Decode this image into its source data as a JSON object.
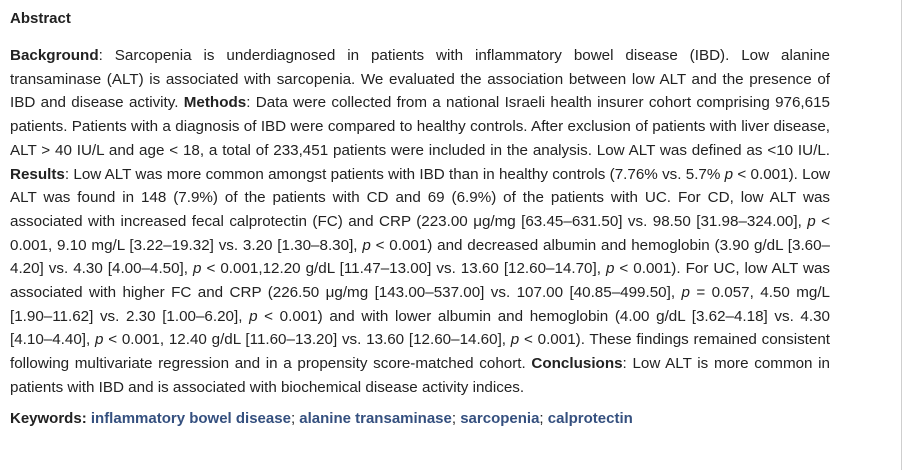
{
  "abstract": {
    "heading": "Abstract",
    "background_label": "Background",
    "background_text": ": Sarcopenia is underdiagnosed in patients with inflammatory bowel disease (IBD). Low alanine transaminase (ALT) is associated with sarcopenia. We evaluated the association between low ALT and the presence of IBD and disease activity. ",
    "methods_label": "Methods",
    "methods_text": ": Data were collected from a national Israeli health insurer cohort comprising 976,615 patients. Patients with a diagnosis of IBD were compared to healthy controls. After exclusion of patients with liver disease, ALT > 40 IU/L and age < 18, a total of 233,451 patients were included in the analysis. Low ALT was defined as <10 IU/L. ",
    "results_label": "Results",
    "results_p1": ": Low ALT was more common amongst patients with IBD than in healthy controls (7.76% vs. 5.7% ",
    "results_p2": " < 0.001). Low ALT was found in 148 (7.9%) of the patients with CD and 69 (6.9%) of the patients with UC. For CD, low ALT was associated with increased fecal calprotectin (FC) and CRP (223.00 μg/mg [63.45–631.50] vs. 98.50 [31.98–324.00], ",
    "results_p3": " < 0.001, 9.10 mg/L [3.22–19.32] vs. 3.20 [1.30–8.30], ",
    "results_p4": " < 0.001) and decreased albumin and hemoglobin (3.90 g/dL [3.60–4.20] vs. 4.30 [4.00–4.50], ",
    "results_p5": " < 0.001,12.20 g/dL [11.47–13.00] vs. 13.60 [12.60–14.70], ",
    "results_p6": " < 0.001). For UC, low ALT was associated with higher FC and CRP (226.50 μg/mg [143.00–537.00] vs. 107.00 [40.85–499.50], ",
    "results_p7": " = 0.057, 4.50 mg/L [1.90–11.62] vs. 2.30 [1.00–6.20], ",
    "results_p8": " < 0.001) and with lower albumin and hemoglobin (4.00 g/dL [3.62–4.18] vs. 4.30 [4.10–4.40], ",
    "results_p9": " < 0.001, 12.40 g/dL [11.60–13.20] vs. 13.60 [12.60–14.60], ",
    "results_p10": " < 0.001). These findings remained consistent following multivariate regression and in a propensity score-matched cohort. ",
    "p_symbol": "p",
    "conclusions_label": "Conclusions",
    "conclusions_text": ": Low ALT is more common in patients with IBD and is associated with biochemical disease activity indices."
  },
  "keywords": {
    "label": "Keywords:",
    "items": [
      "inflammatory bowel disease",
      "alanine transaminase",
      "sarcopenia",
      "calprotectin"
    ],
    "separator": ";"
  }
}
